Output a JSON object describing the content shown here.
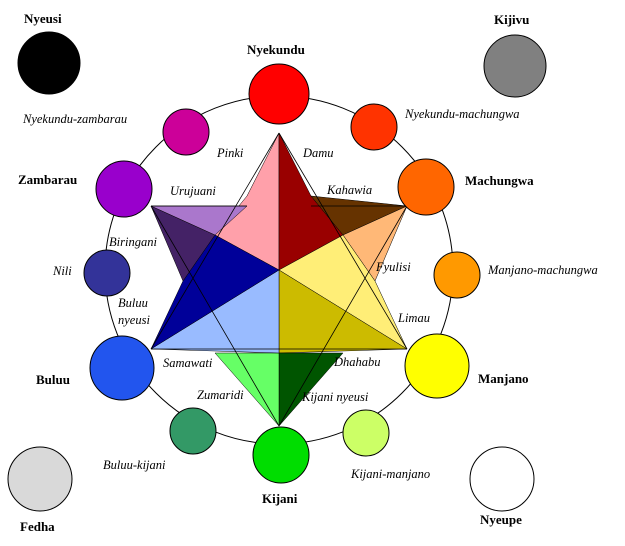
{
  "colors": {
    "nyeusi": "#000000",
    "kijivu": "#808080",
    "fedha": "#d9d9d9",
    "nyeupe": "#ffffff",
    "nyekundu": "#ff0000",
    "nyekundu_machungwa": "#ff3300",
    "machungwa": "#ff6600",
    "manjano_machungwa": "#ff9900",
    "manjano": "#ffff00",
    "kijani_manjano": "#ccff66",
    "kijani": "#00dd00",
    "buluu_kijani": "#339966",
    "buluu": "#2255ee",
    "nili": "#333399",
    "zambarau": "#9900cc",
    "nyekundu_zambarau": "#cc0099",
    "pinki": "#ffa0aa",
    "damu": "#990000",
    "kahawia": "#663300",
    "fyulisi": "#ffb877",
    "limau": "#ffee77",
    "dhahabu": "#ccbb00",
    "kijani_nyeusi": "#005500",
    "zumaridi": "#66ff66",
    "samawati": "#99bbff",
    "buluu_nyeusi": "#000099",
    "biringani": "#442266",
    "urujuani": "#aa77cc"
  },
  "labels": {
    "nyeusi": "Nyeusi",
    "kijivu": "Kijivu",
    "fedha": "Fedha",
    "nyeupe": "Nyeupe",
    "nyekundu": "Nyekundu",
    "nyekundu_machungwa": "Nyekundu-machungwa",
    "machungwa": "Machungwa",
    "manjano_machungwa": "Manjano-machungwa",
    "manjano": "Manjano",
    "kijani_manjano": "Kijani-manjano",
    "kijani": "Kijani",
    "buluu_kijani": "Buluu-kijani",
    "buluu": "Buluu",
    "nili": "Nili",
    "zambarau": "Zambarau",
    "nyekundu_zambarau": "Nyekundu-zambarau",
    "pinki": "Pinki",
    "damu": "Damu",
    "kahawia": "Kahawia",
    "fyulisi": "Fyulisi",
    "limau": "Limau",
    "dhahabu": "Dhahabu",
    "kijani_nyeusi": "Kijani nyeusi",
    "zumaridi": "Zumaridi",
    "samawati": "Samawati",
    "buluu_nyeusi_line1": "Buluu",
    "buluu_nyeusi_line2": "nyeusi",
    "biringani": "Biringani",
    "urujuani": "Urujuani"
  }
}
